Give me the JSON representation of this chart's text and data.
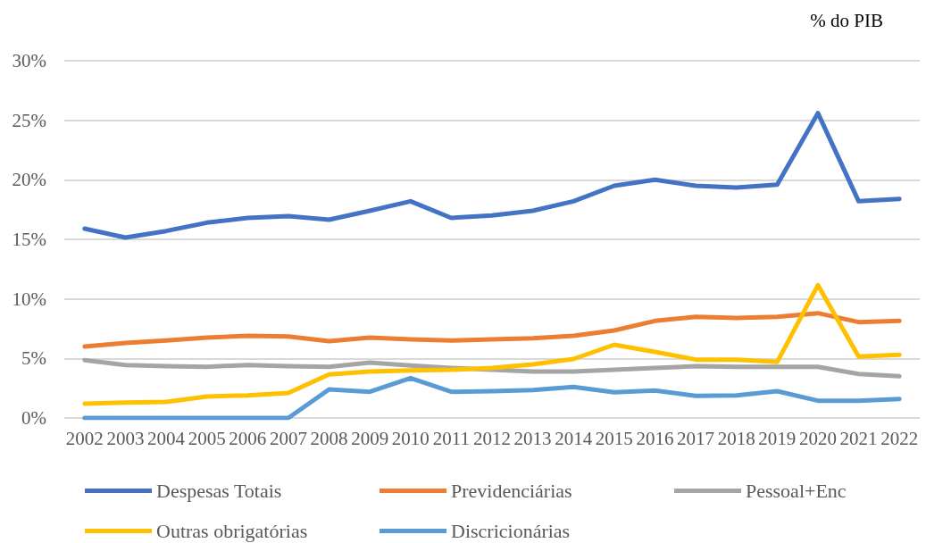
{
  "chart_data": {
    "type": "line",
    "annotations": [
      "% do PIB"
    ],
    "categories": [
      "2002",
      "2003",
      "2004",
      "2005",
      "2006",
      "2007",
      "2008",
      "2009",
      "2010",
      "2011",
      "2012",
      "2013",
      "2014",
      "2015",
      "2016",
      "2017",
      "2018",
      "2019",
      "2020",
      "2021",
      "2022"
    ],
    "series": [
      {
        "name": "Despesas Totais",
        "color": "#4472c4",
        "values": [
          15.9,
          15.15,
          15.7,
          16.4,
          16.8,
          16.95,
          16.65,
          17.4,
          18.2,
          16.8,
          17.0,
          17.4,
          18.2,
          19.5,
          20.0,
          19.5,
          19.35,
          19.6,
          25.6,
          18.2,
          18.4
        ]
      },
      {
        "name": "Previdenciárias",
        "color": "#ed7d31",
        "values": [
          6.0,
          6.3,
          6.5,
          6.75,
          6.9,
          6.85,
          6.45,
          6.75,
          6.6,
          6.5,
          6.6,
          6.7,
          6.9,
          7.35,
          8.15,
          8.5,
          8.4,
          8.5,
          8.8,
          8.05,
          8.15
        ]
      },
      {
        "name": "Pessoal+Enc",
        "color": "#a5a5a5",
        "values": [
          4.85,
          4.45,
          4.35,
          4.3,
          4.45,
          4.35,
          4.3,
          4.65,
          4.4,
          4.2,
          4.05,
          3.9,
          3.9,
          4.05,
          4.2,
          4.35,
          4.3,
          4.3,
          4.3,
          3.7,
          3.5
        ]
      },
      {
        "name": "Outras obrigatórias",
        "color": "#ffc000",
        "values": [
          1.2,
          1.3,
          1.35,
          1.8,
          1.9,
          2.1,
          3.65,
          3.9,
          4.0,
          4.05,
          4.2,
          4.5,
          4.95,
          6.15,
          5.55,
          4.9,
          4.9,
          4.7,
          11.15,
          5.15,
          5.3
        ]
      },
      {
        "name": "Discricionárias",
        "color": "#5b9bd5",
        "values": [
          0,
          0,
          0,
          0,
          0,
          0,
          2.4,
          2.2,
          3.35,
          2.2,
          2.25,
          2.35,
          2.6,
          2.15,
          2.3,
          1.85,
          1.9,
          2.25,
          1.45,
          1.45,
          1.6
        ]
      }
    ],
    "ylim": [
      0,
      30
    ],
    "yticks": [
      {
        "value": 0,
        "label": "0%"
      },
      {
        "value": 5,
        "label": "5%"
      },
      {
        "value": 10,
        "label": "10%"
      },
      {
        "value": 15,
        "label": "15%"
      },
      {
        "value": 20,
        "label": "20%"
      },
      {
        "value": 25,
        "label": "25%"
      },
      {
        "value": 30,
        "label": "30%"
      }
    ],
    "grid": "y",
    "legend": "bottom",
    "marker": "none",
    "line_style": "solid"
  }
}
